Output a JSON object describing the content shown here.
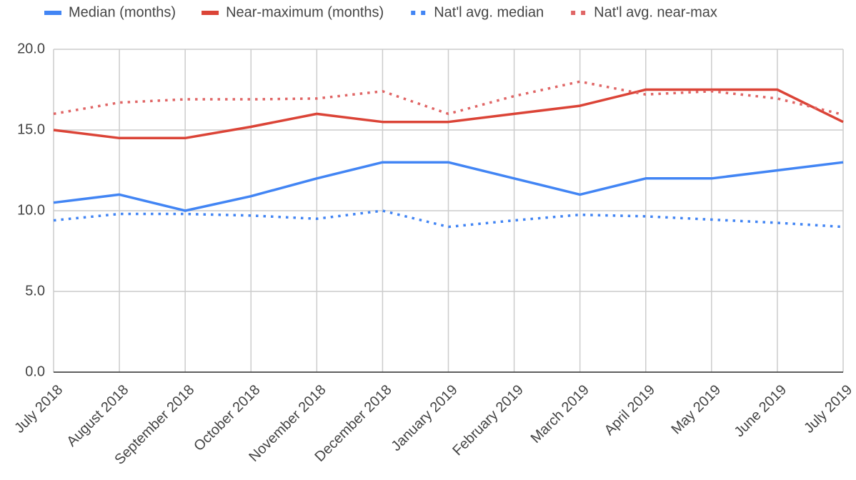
{
  "chart_data": {
    "type": "line",
    "categories": [
      "July 2018",
      "August 2018",
      "September 2018",
      "October 2018",
      "November 2018",
      "December 2018",
      "January 2019",
      "February 2019",
      "March 2019",
      "April 2019",
      "May 2019",
      "June 2019",
      "July 2019"
    ],
    "series": [
      {
        "name": "Median (months)",
        "color": "#4285f4",
        "style": "solid",
        "values": [
          10.5,
          11,
          10,
          10.9,
          12,
          13,
          13,
          12,
          11,
          12,
          12,
          12.5,
          13
        ]
      },
      {
        "name": "Near-maximum (months)",
        "color": "#db4437",
        "style": "solid",
        "values": [
          15,
          14.5,
          14.5,
          15.2,
          16,
          15.5,
          15.5,
          16,
          16.5,
          17.5,
          17.5,
          17.5,
          15.5
        ]
      },
      {
        "name": "Nat'l avg. median",
        "color": "#4285f4",
        "style": "dotted",
        "values": [
          9.4,
          9.8,
          9.8,
          9.7,
          9.5,
          10,
          9,
          9.4,
          9.75,
          9.65,
          9.45,
          9.25,
          9
        ]
      },
      {
        "name": "Nat'l avg. near-max",
        "color": "#e06666",
        "style": "dotted",
        "values": [
          16,
          16.7,
          16.9,
          16.9,
          16.95,
          17.4,
          16,
          17.1,
          18,
          17.2,
          17.4,
          16.95,
          15.95
        ]
      }
    ],
    "ylim": [
      0,
      20
    ],
    "yticks": [
      {
        "value": 0,
        "label": "0.0"
      },
      {
        "value": 5,
        "label": "5.0"
      },
      {
        "value": 10,
        "label": "10.0"
      },
      {
        "value": 15,
        "label": "15.0"
      },
      {
        "value": 20,
        "label": "20.0"
      }
    ],
    "grid": true,
    "legend": "top"
  }
}
